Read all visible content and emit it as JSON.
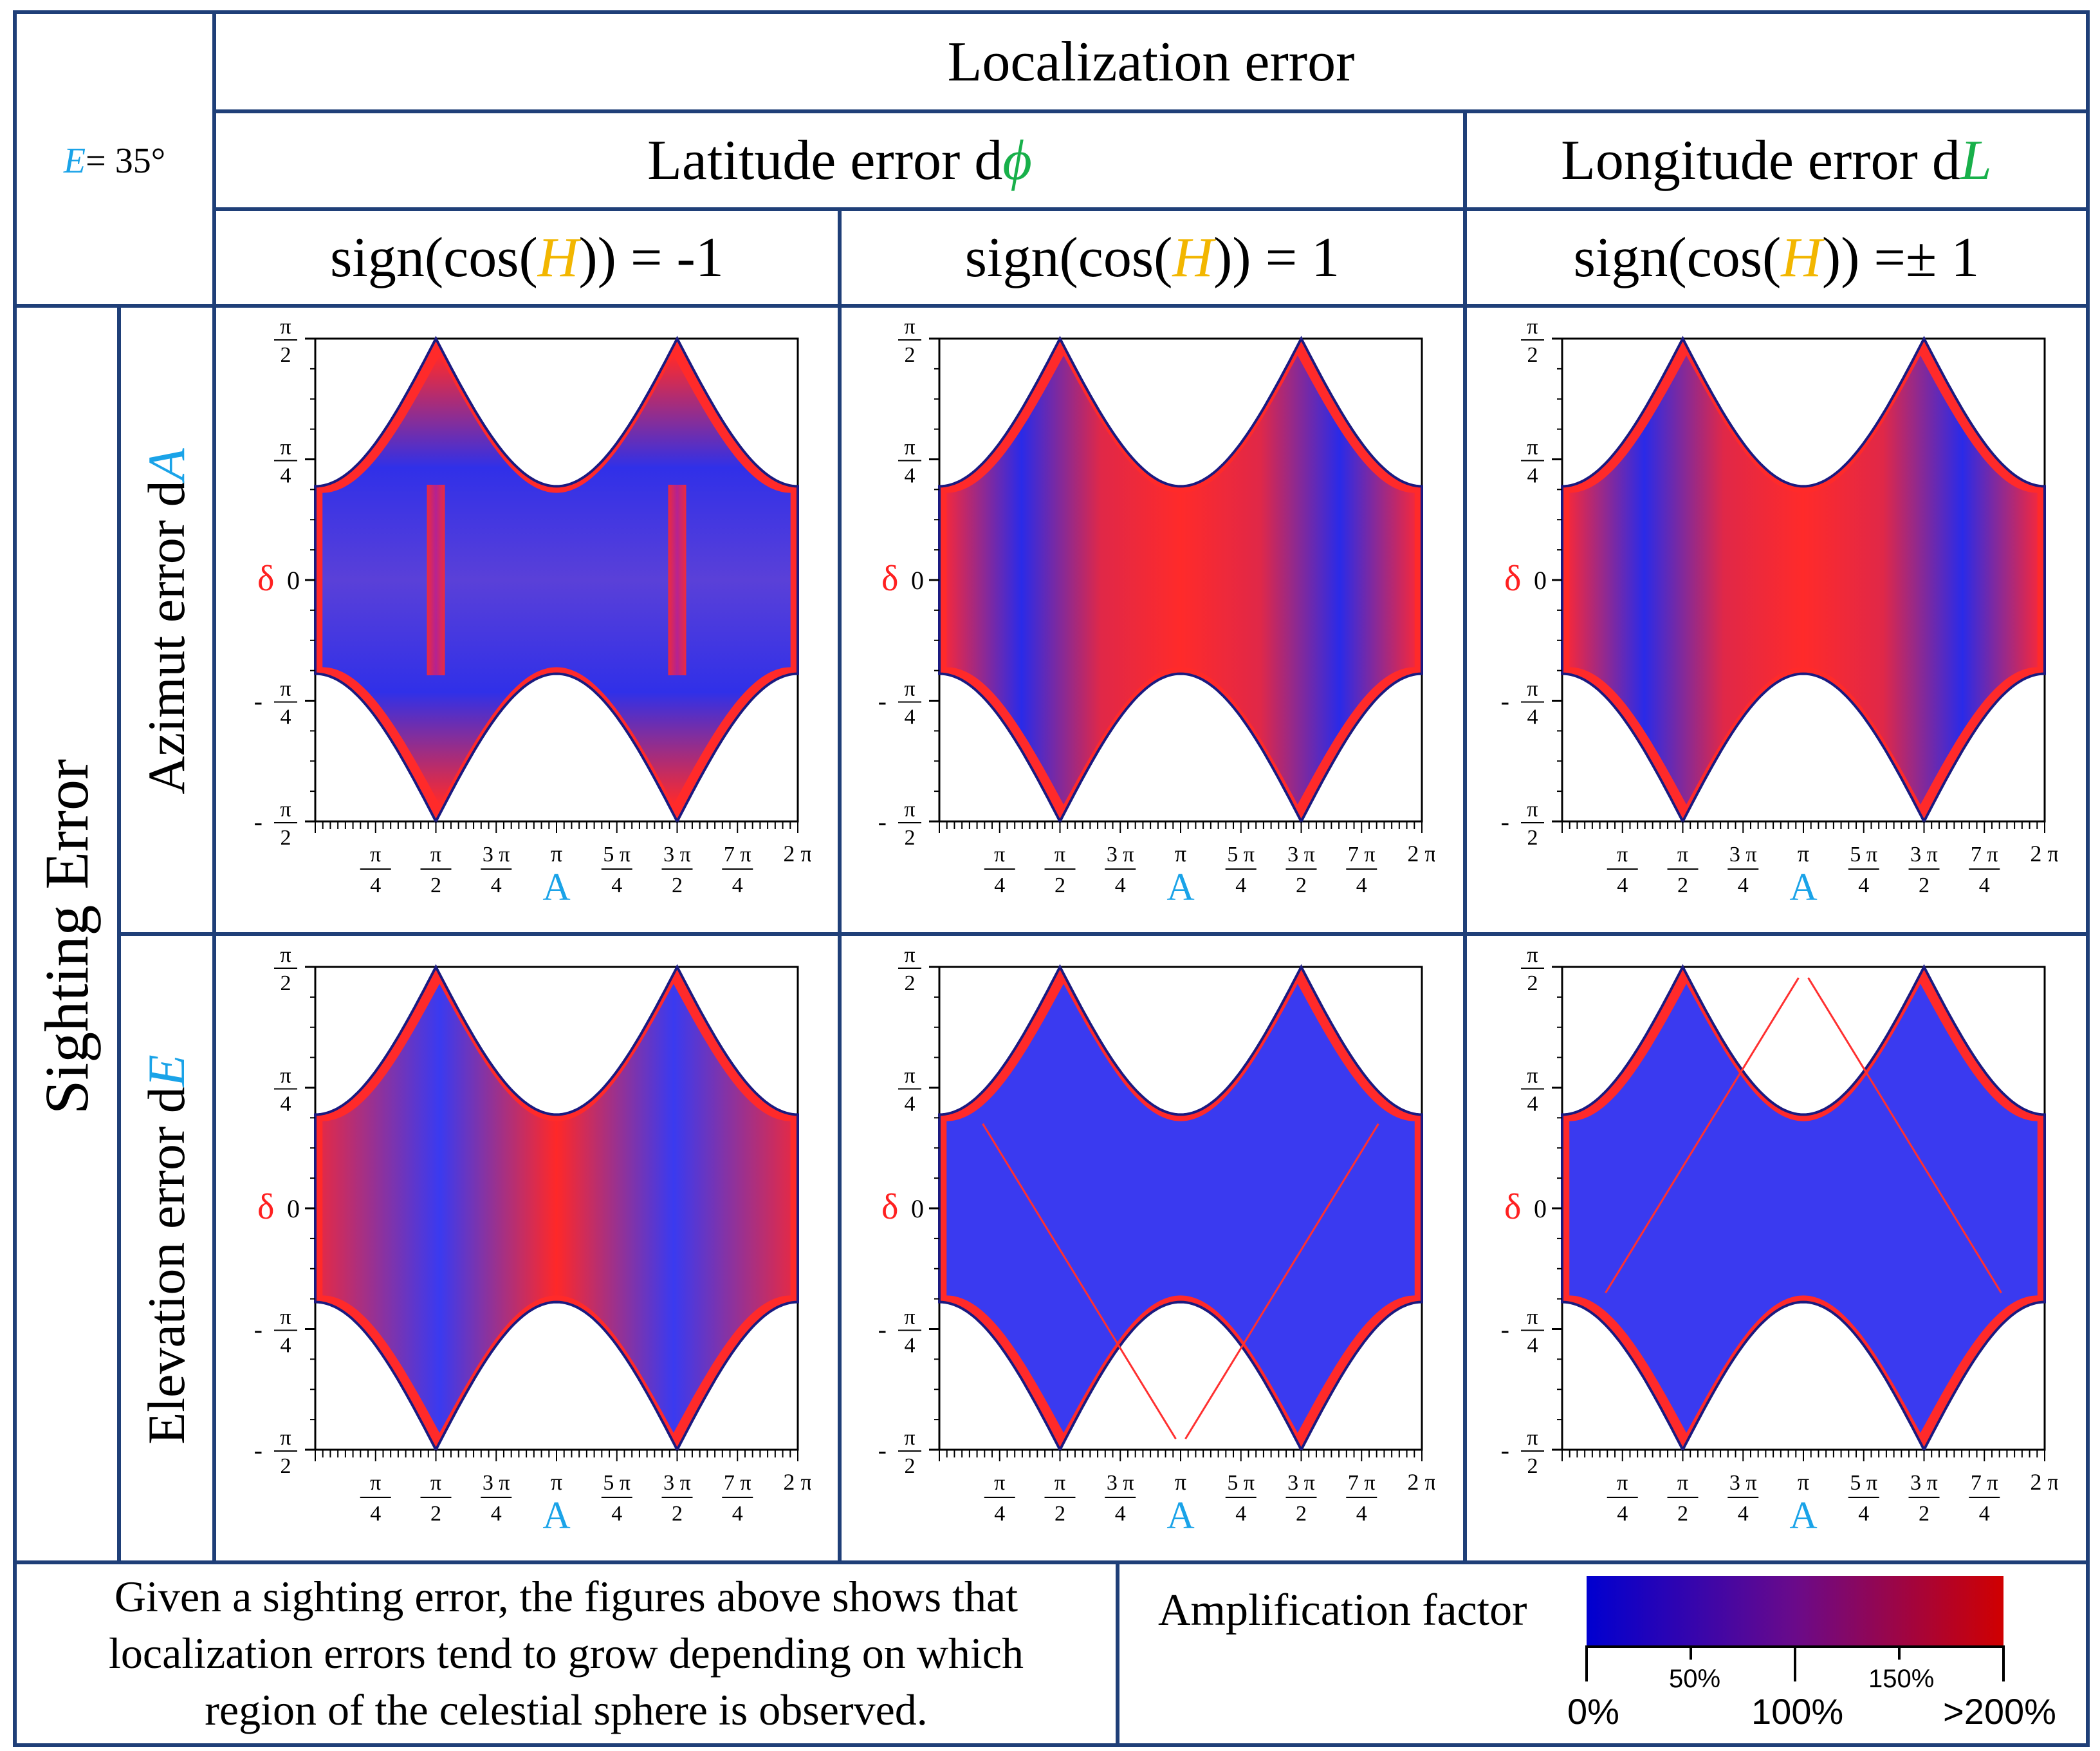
{
  "corner": {
    "elevation_symbol": "E",
    "elevation_value": " = 35°"
  },
  "header": {
    "localization": "Localization error",
    "latitude_prefix": "Latitude error d",
    "latitude_symbol": "ϕ",
    "longitude_prefix": "Longitude error d",
    "longitude_symbol": "L",
    "sign_prefix": "sign(cos(",
    "sign_symbol": "H",
    "col1_suffix": ")) = -1",
    "col2_suffix": ")) = 1",
    "col3_suffix": ")) =± 1"
  },
  "rows": {
    "sighting": "Sighting Error",
    "azimut_prefix": "Azimut error d",
    "azimut_symbol": "A",
    "elevation_prefix": "Elevation error d",
    "elevation_symbol": "E"
  },
  "axes": {
    "ylabel": "δ",
    "xlabel": "A",
    "pi": "π",
    "y_ticks": [
      {
        "sign": "",
        "num": "π",
        "den": "2"
      },
      {
        "sign": "",
        "num": "π",
        "den": "4"
      },
      {
        "sign": "",
        "num": "0",
        "den": ""
      },
      {
        "sign": "-",
        "num": "π",
        "den": "4"
      },
      {
        "sign": "-",
        "num": "π",
        "den": "2"
      }
    ],
    "x_ticks": [
      {
        "num": "π",
        "den": "4"
      },
      {
        "num": "π",
        "den": "2"
      },
      {
        "num": "3 π",
        "den": "4"
      },
      {
        "num": "π",
        "den": ""
      },
      {
        "num": "5 π",
        "den": "4"
      },
      {
        "num": "3 π",
        "den": "2"
      },
      {
        "num": "7 π",
        "den": "4"
      },
      {
        "num": "2 π",
        "den": ""
      }
    ]
  },
  "chart_data": [
    {
      "type": "heatmap",
      "id": "azimut-lat-neg",
      "title": "Azimut error dA / Latitude error dϕ / sign(cos(H)) = -1",
      "xlabel": "A",
      "ylabel": "δ",
      "xlim": [
        0,
        6.2832
      ],
      "ylim": [
        -1.5708,
        1.5708
      ],
      "colormap": "amplification factor 0%–>200%"
    },
    {
      "type": "heatmap",
      "id": "azimut-lat-pos",
      "title": "Azimut error dA / Latitude error dϕ / sign(cos(H)) = 1",
      "xlabel": "A",
      "ylabel": "δ",
      "xlim": [
        0,
        6.2832
      ],
      "ylim": [
        -1.5708,
        1.5708
      ],
      "colormap": "amplification factor 0%–>200%"
    },
    {
      "type": "heatmap",
      "id": "azimut-lon",
      "title": "Azimut error dA / Longitude error dL / sign(cos(H)) = ±1",
      "xlabel": "A",
      "ylabel": "δ",
      "xlim": [
        0,
        6.2832
      ],
      "ylim": [
        -1.5708,
        1.5708
      ],
      "colormap": "amplification factor 0%–>200%"
    },
    {
      "type": "heatmap",
      "id": "elev-lat-neg",
      "title": "Elevation error dE / Latitude error dϕ / sign(cos(H)) = -1",
      "xlabel": "A",
      "ylabel": "δ",
      "xlim": [
        0,
        6.2832
      ],
      "ylim": [
        -1.5708,
        1.5708
      ],
      "colormap": "amplification factor 0%–>200%"
    },
    {
      "type": "heatmap",
      "id": "elev-lat-pos",
      "title": "Elevation error dE / Latitude error dϕ / sign(cos(H)) = 1",
      "xlabel": "A",
      "ylabel": "δ",
      "xlim": [
        0,
        6.2832
      ],
      "ylim": [
        -1.5708,
        1.5708
      ],
      "colormap": "amplification factor 0%–>200%"
    },
    {
      "type": "heatmap",
      "id": "elev-lon",
      "title": "Elevation error dE / Longitude error dL / sign(cos(H)) = ±1",
      "xlabel": "A",
      "ylabel": "δ",
      "xlim": [
        0,
        6.2832
      ],
      "ylim": [
        -1.5708,
        1.5708
      ],
      "colormap": "amplification factor 0%–>200%"
    }
  ],
  "footer": {
    "line1": "Given a sighting error, the figures above shows that",
    "line2": "localization errors tend to grow depending on which",
    "line3": "region of the celestial sphere is observed."
  },
  "legend": {
    "title": "Amplification factor",
    "ticks": [
      "0%",
      "50%",
      "100%",
      "150%",
      ">200%"
    ],
    "color_low": "#0000d0",
    "color_high": "#d00000"
  },
  "colors": {
    "border": "#1f3f78",
    "blue": "#1aa3e8",
    "orange": "#f2b600",
    "green": "#18b04a",
    "red": "#ff2020",
    "plot_blue": "#3a3af0"
  }
}
